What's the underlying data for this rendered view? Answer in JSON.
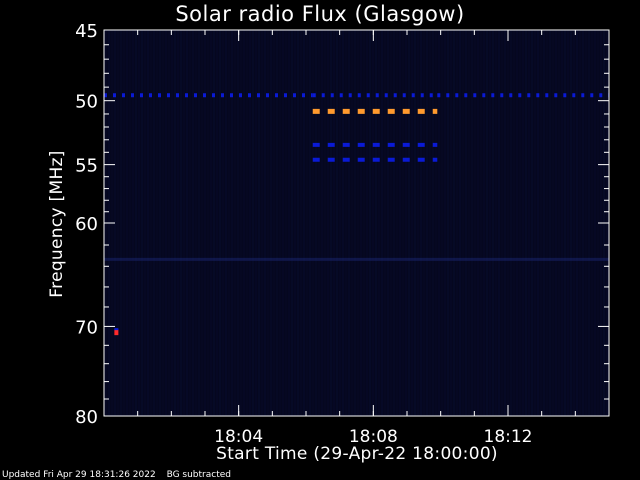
{
  "colors": {
    "background": "#000000",
    "plot_background": "#05071f",
    "axis": "#ffffff",
    "band_blue": "#0a1ad6",
    "band_orange": "#ff9a2e",
    "dot_red": "#ff2a2a"
  },
  "footer": {
    "updated": "Updated Fri Apr 29 18:31:26 2022",
    "note": "BG subtracted"
  },
  "chart_data": {
    "type": "heatmap",
    "title": "Solar radio Flux (Glasgow)",
    "xlabel": "Start Time (29-Apr-22 18:00:00)",
    "ylabel": "Frequency [MHz]",
    "x_unit": "minutes after 18:00:00",
    "xlim": [
      0,
      15
    ],
    "ylim_top": 45,
    "ylim_bottom": 80,
    "y_scale": "log",
    "x_ticks": [
      {
        "value": 4,
        "label": "18:04"
      },
      {
        "value": 8,
        "label": "18:08"
      },
      {
        "value": 12,
        "label": "18:12"
      }
    ],
    "y_ticks": [
      {
        "value": 45,
        "label": "45"
      },
      {
        "value": 50,
        "label": "50"
      },
      {
        "value": 55,
        "label": "55"
      },
      {
        "value": 60,
        "label": "60"
      },
      {
        "value": 70,
        "label": "70"
      },
      {
        "value": 80,
        "label": "80"
      }
    ],
    "y_minor_ticks": [
      46,
      47,
      48,
      49,
      51,
      52,
      53,
      54,
      56,
      57,
      58,
      59,
      62,
      64,
      66,
      68,
      72,
      74,
      76,
      78
    ],
    "x_minor_step": 1,
    "bands": [
      {
        "freq": 49.6,
        "start": 0.0,
        "end": 6.2,
        "intensity": "blue"
      },
      {
        "freq": 49.6,
        "start": 9.9,
        "end": 15.0,
        "intensity": "blue"
      },
      {
        "freq": 49.6,
        "start": 6.2,
        "end": 9.9,
        "intensity": "blue"
      },
      {
        "freq": 50.8,
        "start": 6.2,
        "end": 9.9,
        "intensity": "orange"
      },
      {
        "freq": 53.4,
        "start": 6.2,
        "end": 9.9,
        "intensity": "blue"
      },
      {
        "freq": 54.6,
        "start": 6.2,
        "end": 9.9,
        "intensity": "blue"
      }
    ],
    "spots": [
      {
        "freq": 70.6,
        "time": 0.1,
        "intensity": "red"
      }
    ]
  }
}
